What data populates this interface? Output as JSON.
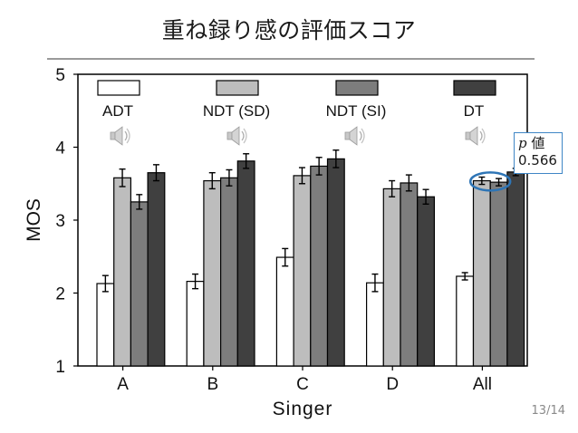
{
  "slide": {
    "title": "重ね録り感の評価スコア",
    "page_number": "13/14"
  },
  "pvalue": {
    "symbol": "p",
    "label": "値",
    "value": "0.566"
  },
  "chart_data": {
    "type": "bar",
    "title": "",
    "xlabel": "Singer",
    "ylabel": "MOS",
    "ylim": [
      1,
      5
    ],
    "yticks": [
      "1",
      "2",
      "3",
      "4",
      "5"
    ],
    "categories": [
      "A",
      "B",
      "C",
      "D",
      "All"
    ],
    "grid": false,
    "legend_position": "top",
    "series": [
      {
        "name": "ADT",
        "color": "#ffffff",
        "values": [
          2.13,
          2.16,
          2.49,
          2.14,
          2.23
        ],
        "errors": [
          0.11,
          0.1,
          0.12,
          0.12,
          0.05
        ]
      },
      {
        "name": "NDT (SD)",
        "color": "#bdbdbd",
        "values": [
          3.58,
          3.54,
          3.61,
          3.43,
          3.54
        ],
        "errors": [
          0.12,
          0.11,
          0.11,
          0.11,
          0.05
        ]
      },
      {
        "name": "NDT (SI)",
        "color": "#7d7d7d",
        "values": [
          3.25,
          3.58,
          3.74,
          3.51,
          3.52
        ],
        "errors": [
          0.1,
          0.11,
          0.12,
          0.11,
          0.05
        ]
      },
      {
        "name": "DT",
        "color": "#404040",
        "values": [
          3.65,
          3.81,
          3.84,
          3.32,
          3.66
        ],
        "errors": [
          0.11,
          0.1,
          0.12,
          0.1,
          0.05
        ]
      }
    ],
    "highlight": {
      "category": "All",
      "series": [
        "NDT (SD)",
        "NDT (SI)"
      ],
      "color": "#2e75b6"
    },
    "speaker_icon": "speaker-icon"
  }
}
